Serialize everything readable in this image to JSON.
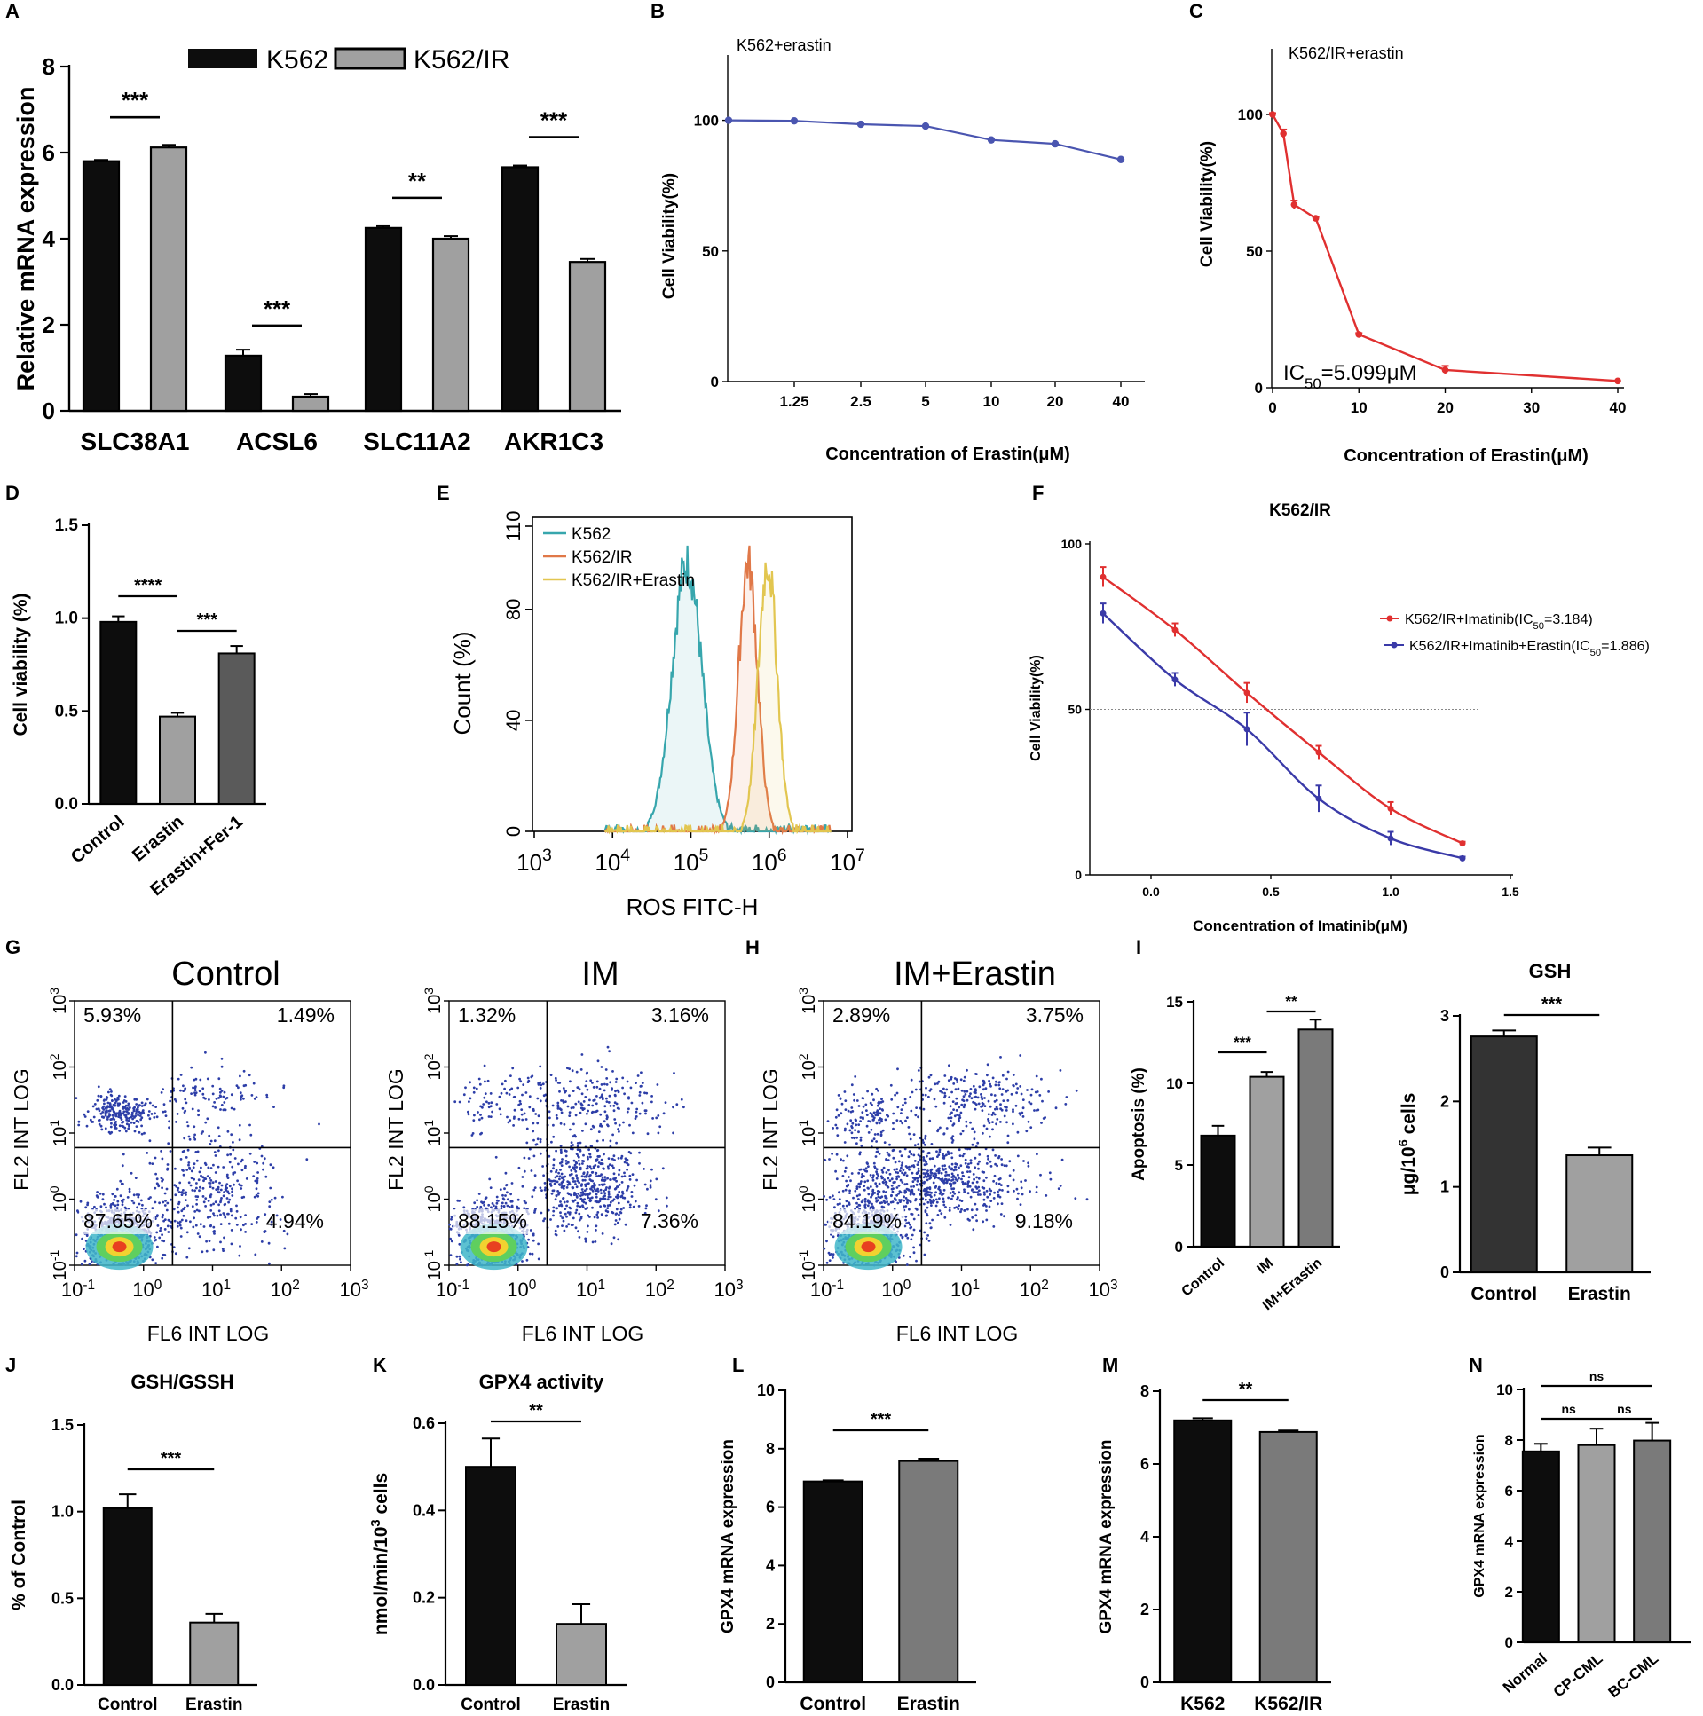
{
  "chart_data": [
    {
      "panel": "A",
      "type": "bar",
      "ylabel": "Relative mRNA expression",
      "ylim": [
        0,
        8
      ],
      "yticks": [
        0,
        2,
        4,
        6,
        8
      ],
      "categories": [
        "SLC38A1",
        "ACSL6",
        "SLC11A2",
        "AKR1C3"
      ],
      "series": [
        {
          "name": "K562",
          "color": "#0d0d0d",
          "values": [
            5.8,
            1.28,
            4.25,
            5.66
          ],
          "errors": [
            0.03,
            0.14,
            0.04,
            0.04
          ]
        },
        {
          "name": "K562/IR",
          "color": "#a0a0a0",
          "values": [
            6.12,
            0.33,
            4.0,
            3.46
          ],
          "errors": [
            0.06,
            0.06,
            0.06,
            0.07
          ]
        }
      ],
      "significance": [
        "***",
        "***",
        "**",
        "***"
      ]
    },
    {
      "panel": "B",
      "type": "line",
      "title": "K562+erastin",
      "xlabel": "Concentration of Erastin(μM)",
      "ylabel": "Cell Viability(%)",
      "ylim": [
        0,
        125
      ],
      "yticks": [
        0,
        50,
        100
      ],
      "x": [
        "",
        "1.25",
        "2.5",
        "5",
        "10",
        "20",
        "40"
      ],
      "values": [
        100,
        99.8,
        98.5,
        97.8,
        92.5,
        91,
        85
      ],
      "color": "#4a55b0"
    },
    {
      "panel": "C",
      "type": "line",
      "title": "K562/IR+erastin",
      "xlabel": "Concentration of Erastin(μM)",
      "ylabel": "Cell Viability(%)",
      "annotation_prefix": "IC",
      "annotation_sub": "50",
      "annotation_suffix": "=5.099μM",
      "xlim": [
        0,
        42
      ],
      "xticks": [
        0,
        10,
        20,
        30,
        40
      ],
      "ylim": [
        0,
        115
      ],
      "yticks": [
        0,
        50,
        100
      ],
      "x": [
        0,
        1.25,
        2.5,
        5,
        10,
        20,
        40
      ],
      "values": [
        100,
        93,
        67,
        62,
        19.5,
        6.5,
        2.5
      ],
      "errors": [
        0.5,
        1.5,
        1.5,
        0.5,
        0.5,
        1.5,
        0.3
      ],
      "color": "#e03030"
    },
    {
      "panel": "D",
      "type": "bar",
      "ylabel": "Cell viability (%)",
      "ylim": [
        0,
        1.5
      ],
      "yticks": [
        "0.0",
        "0.5",
        "1.0",
        "1.5"
      ],
      "categories": [
        "Control",
        "Erastin",
        "Erastin+Fer-1"
      ],
      "values": [
        0.98,
        0.47,
        0.81
      ],
      "errors": [
        0.03,
        0.02,
        0.04
      ],
      "colors": [
        "#0d0d0d",
        "#a0a0a0",
        "#5a5a5a"
      ],
      "significance": [
        {
          "pair": [
            0,
            1
          ],
          "label": "****"
        },
        {
          "pair": [
            1,
            2
          ],
          "label": "***"
        }
      ]
    },
    {
      "panel": "E",
      "type": "area",
      "xlabel": "ROS FITC-H",
      "ylabel": "Count  (%)",
      "xscale": "log",
      "xlim": [
        1000,
        10000000
      ],
      "ylim": [
        0,
        110
      ],
      "yticks": [
        0,
        40,
        80,
        110
      ],
      "xtick_base": "10",
      "xtick_exps": [
        "3",
        "4",
        "5",
        "6",
        "7"
      ],
      "series": [
        {
          "name": "K562",
          "color": "#37a6ad",
          "peak_log": 4.95,
          "peak": 100,
          "width": 0.19
        },
        {
          "name": "K562/IR",
          "color": "#e07848",
          "peak_log": 5.73,
          "peak": 100,
          "width": 0.12
        },
        {
          "name": "K562/IR+Erastin",
          "color": "#e2c650",
          "peak_log": 5.98,
          "peak": 100,
          "width": 0.12
        }
      ]
    },
    {
      "panel": "F",
      "type": "line",
      "title": "K562/IR",
      "xlabel": "Concentration of Imatinib(μM)",
      "ylabel": "Cell Viability(%)",
      "xlim": [
        -0.22,
        1.5
      ],
      "xticks": [
        "0.0",
        "0.5",
        "1.0",
        "1.5"
      ],
      "ylim": [
        0,
        100
      ],
      "yticks": [
        0,
        50,
        100
      ],
      "x": [
        -0.2,
        0.1,
        0.4,
        0.7,
        1.0,
        1.3
      ],
      "series": [
        {
          "name": "K562/IR+Imatinib(IC50=3.184)",
          "color": "#e03030",
          "values": [
            90,
            74,
            55,
            37,
            20,
            9.5
          ],
          "errors": [
            3,
            2,
            3,
            2,
            2,
            0.5
          ]
        },
        {
          "name": "K562/IR+Imatinib+Erastin(IC50=1.886)",
          "color": "#3a3aa8",
          "values": [
            79,
            59,
            44,
            23,
            11,
            5
          ],
          "errors": [
            3,
            2,
            5,
            4,
            2,
            0.5
          ]
        }
      ],
      "legend": [
        {
          "pre": "K562/IR+Imatinib(IC",
          "sub": "50",
          "post": "=3.184)"
        },
        {
          "pre": "K562/IR+Imatinib+Erastin(IC",
          "sub": "50",
          "post": "=1.886)"
        }
      ],
      "reference_line": 50
    },
    {
      "panel": "G",
      "type": "scatter",
      "title": "Control",
      "xlabel": "FL6 INT LOG",
      "ylabel": "FL2 INT LOG",
      "tick_base": "10",
      "tick_exps": [
        "-1",
        "0",
        "1",
        "2",
        "3"
      ],
      "quadrants": {
        "ul": "5.93%",
        "ur": "1.49%",
        "ll": "87.65%",
        "lr": "4.94%"
      }
    },
    {
      "panel": "H_left",
      "type": "scatter",
      "title": "IM",
      "xlabel": "FL6 INT LOG",
      "ylabel": "FL2 INT LOG",
      "tick_base": "10",
      "tick_exps": [
        "-1",
        "0",
        "1",
        "2",
        "3"
      ],
      "quadrants": {
        "ul": "1.32%",
        "ur": "3.16%",
        "ll": "88.15%",
        "lr": "7.36%"
      }
    },
    {
      "panel": "H",
      "type": "scatter",
      "title": "IM+Erastin",
      "xlabel": "FL6 INT LOG",
      "ylabel": "FL2 INT LOG",
      "tick_base": "10",
      "tick_exps": [
        "-1",
        "0",
        "1",
        "2",
        "3"
      ],
      "quadrants": {
        "ul": "2.89%",
        "ur": "3.75%",
        "ll": "84.19%",
        "lr": "9.18%"
      }
    },
    {
      "panel": "I",
      "type": "bar",
      "ylabel": "Apoptosis (%)",
      "ylim": [
        0,
        15
      ],
      "yticks": [
        0,
        5,
        10,
        15
      ],
      "categories": [
        "Control",
        "IM",
        "IM+Erastin"
      ],
      "values": [
        6.8,
        10.4,
        13.3
      ],
      "errors": [
        0.6,
        0.3,
        0.6
      ],
      "colors": [
        "#0d0d0d",
        "#a0a0a0",
        "#7a7a7a"
      ],
      "significance": [
        {
          "pair": [
            0,
            1
          ],
          "label": "***"
        },
        {
          "pair": [
            1,
            2
          ],
          "label": "**"
        }
      ]
    },
    {
      "panel": "I_right",
      "type": "bar",
      "title": "GSH",
      "ylabel_pre": "μg/10",
      "ylabel_sup": "6",
      "ylabel_post": " cells",
      "ylim": [
        0,
        3
      ],
      "yticks": [
        0,
        1,
        2,
        3
      ],
      "categories": [
        "Control",
        "Erastin"
      ],
      "values": [
        2.76,
        1.37
      ],
      "errors": [
        0.07,
        0.09
      ],
      "colors": [
        "#333333",
        "#a0a0a0"
      ],
      "significance": [
        {
          "pair": [
            0,
            1
          ],
          "label": "***"
        }
      ]
    },
    {
      "panel": "J",
      "type": "bar",
      "title": "GSH/GSSH",
      "ylabel": "% of Control",
      "ylim": [
        0,
        1.5
      ],
      "yticks": [
        "0.0",
        "0.5",
        "1.0",
        "1.5"
      ],
      "categories": [
        "Control",
        "Erastin"
      ],
      "values": [
        1.02,
        0.36
      ],
      "errors": [
        0.08,
        0.05
      ],
      "colors": [
        "#0d0d0d",
        "#a0a0a0"
      ],
      "significance": [
        {
          "pair": [
            0,
            1
          ],
          "label": "***"
        }
      ]
    },
    {
      "panel": "K",
      "type": "bar",
      "title": "GPX4 activity",
      "ylabel_pre": "nmol/min/10",
      "ylabel_sup": "3",
      "ylabel_post": " cells",
      "ylim": [
        0,
        0.6
      ],
      "yticks": [
        "0.0",
        "0.2",
        "0.4",
        "0.6"
      ],
      "categories": [
        "Control",
        "Erastin"
      ],
      "values": [
        0.5,
        0.14
      ],
      "errors": [
        0.065,
        0.045
      ],
      "colors": [
        "#0d0d0d",
        "#a0a0a0"
      ],
      "significance": [
        {
          "pair": [
            0,
            1
          ],
          "label": "**"
        }
      ]
    },
    {
      "panel": "L",
      "type": "bar",
      "ylabel": "GPX4 mRNA expression",
      "ylim": [
        0,
        10
      ],
      "yticks": [
        0,
        2,
        4,
        6,
        8,
        10
      ],
      "categories": [
        "Control",
        "Erastin"
      ],
      "values": [
        6.88,
        7.58
      ],
      "errors": [
        0.04,
        0.08
      ],
      "colors": [
        "#0d0d0d",
        "#7a7a7a"
      ],
      "significance": [
        {
          "pair": [
            0,
            1
          ],
          "label": "***"
        }
      ]
    },
    {
      "panel": "M",
      "type": "bar",
      "ylabel": "GPX4 mRNA expression",
      "ylim": [
        0,
        8
      ],
      "yticks": [
        0,
        2,
        4,
        6,
        8
      ],
      "categories": [
        "K562",
        "K562/IR"
      ],
      "values": [
        7.2,
        6.88
      ],
      "errors": [
        0.06,
        0.04
      ],
      "colors": [
        "#0d0d0d",
        "#7a7a7a"
      ],
      "significance": [
        {
          "pair": [
            0,
            1
          ],
          "label": "**"
        }
      ]
    },
    {
      "panel": "N",
      "type": "bar",
      "ylabel": "GPX4 mRNA expression",
      "ylim": [
        0,
        10
      ],
      "yticks": [
        0,
        2,
        4,
        6,
        8,
        10
      ],
      "categories": [
        "Normal",
        "CP-CML",
        "BC-CML"
      ],
      "values": [
        7.55,
        7.8,
        7.98
      ],
      "errors": [
        0.3,
        0.65,
        0.7
      ],
      "colors": [
        "#0d0d0d",
        "#a0a0a0",
        "#7a7a7a"
      ],
      "significance": [
        {
          "pair": [
            0,
            2
          ],
          "label": "ns"
        },
        {
          "pair": [
            0,
            1
          ],
          "label": "ns"
        },
        {
          "pair": [
            1,
            2
          ],
          "label": "ns"
        }
      ]
    }
  ]
}
